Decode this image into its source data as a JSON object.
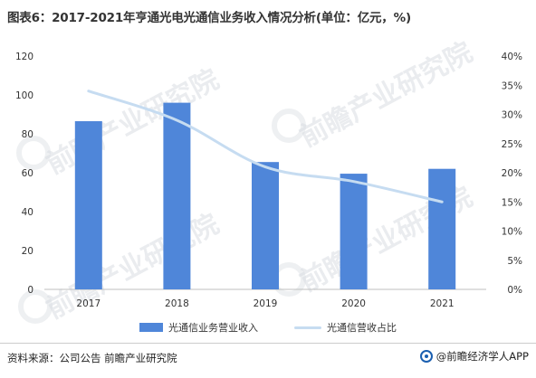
{
  "title": "图表6：2017-2021年亨通光电光通信业务收入情况分析(单位：亿元，%)",
  "watermark": "前瞻产业研究院",
  "colors": {
    "bar": "#4f86d9",
    "line": "#c6dcf1",
    "axis_text": "#333333",
    "grid": "#d9d9d9"
  },
  "chart_data": {
    "type": "bar",
    "categories": [
      "2017",
      "2018",
      "2019",
      "2020",
      "2021"
    ],
    "series": [
      {
        "name": "光通信业务营业收入",
        "type": "bar",
        "axis": "left",
        "values": [
          86.5,
          96,
          65.5,
          59.5,
          62
        ]
      },
      {
        "name": "光通信营收占比",
        "type": "line",
        "axis": "right",
        "values": [
          34,
          29,
          21,
          18.5,
          15
        ]
      }
    ],
    "y_left": {
      "ylim": [
        0,
        120
      ],
      "ticks": [
        0,
        20,
        40,
        60,
        80,
        100,
        120
      ]
    },
    "y_right": {
      "ylim": [
        0,
        40
      ],
      "ticks": [
        "0%",
        "5%",
        "10%",
        "15%",
        "20%",
        "25%",
        "30%",
        "35%",
        "40%"
      ]
    },
    "grid": false,
    "legend_position": "bottom"
  },
  "footer": {
    "source": "资料来源：公司公告 前瞻产业研究院",
    "brand_icon": "qianzhan-logo-icon",
    "brand": "@前瞻经济学人APP"
  }
}
